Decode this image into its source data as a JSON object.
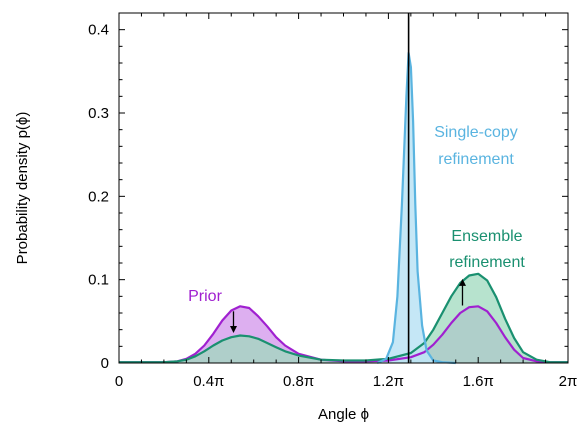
{
  "chart_data": {
    "type": "area",
    "xlabel": "Angle ϕ",
    "ylabel": "Probability density p(ϕ)",
    "xlim": [
      0,
      6.2832
    ],
    "ylim": [
      0,
      0.42
    ],
    "x_ticks": [
      {
        "value": 0,
        "label": "0"
      },
      {
        "value": 1.2566,
        "label": "0.4π"
      },
      {
        "value": 2.5133,
        "label": "0.8π"
      },
      {
        "value": 3.7699,
        "label": "1.2π"
      },
      {
        "value": 5.0265,
        "label": "1.6π"
      },
      {
        "value": 6.2832,
        "label": "2π"
      }
    ],
    "y_ticks": [
      {
        "value": 0,
        "label": "0"
      },
      {
        "value": 0.1,
        "label": "0.1"
      },
      {
        "value": 0.2,
        "label": "0.2"
      },
      {
        "value": 0.3,
        "label": "0.3"
      },
      {
        "value": 0.4,
        "label": "0.4"
      }
    ],
    "reference_line_x": 4.0527,
    "series": [
      {
        "name": "Prior",
        "color": "#a020d0",
        "fill": "#d9a6ee",
        "x": [
          0,
          0.3142,
          0.6283,
          0.8168,
          0.9425,
          1.0681,
          1.1938,
          1.3195,
          1.4451,
          1.5708,
          1.6965,
          1.8221,
          1.9478,
          2.0735,
          2.1991,
          2.3248,
          2.5133,
          2.8274,
          3.1416,
          3.4558,
          3.7699,
          4.0841,
          4.2726,
          4.3982,
          4.5239,
          4.6496,
          4.7752,
          4.9009,
          5.0265,
          5.1522,
          5.2779,
          5.4035,
          5.5292,
          5.6549,
          5.8434,
          6.0319,
          6.2832
        ],
        "y": [
          0.001,
          0.001,
          0.001,
          0.002,
          0.005,
          0.011,
          0.021,
          0.035,
          0.051,
          0.063,
          0.068,
          0.066,
          0.056,
          0.044,
          0.031,
          0.021,
          0.011,
          0.004,
          0.002,
          0.002,
          0.003,
          0.007,
          0.013,
          0.022,
          0.034,
          0.048,
          0.06,
          0.067,
          0.068,
          0.062,
          0.048,
          0.031,
          0.016,
          0.006,
          0.002,
          0.001,
          0.001
        ]
      },
      {
        "name": "Ensemble refinement",
        "color": "#1a9070",
        "fill": "#9fd9be",
        "x": [
          0,
          0.3142,
          0.6283,
          0.8168,
          0.9425,
          1.0681,
          1.1938,
          1.3195,
          1.4451,
          1.5708,
          1.6965,
          1.8221,
          1.9478,
          2.0735,
          2.1991,
          2.3248,
          2.5133,
          2.8274,
          3.1416,
          3.4558,
          3.7699,
          4.0841,
          4.2726,
          4.3982,
          4.5239,
          4.6496,
          4.7752,
          4.9009,
          5.0265,
          5.1522,
          5.2779,
          5.4035,
          5.5292,
          5.6549,
          5.8434,
          6.0319,
          6.2832
        ],
        "y": [
          0.001,
          0.001,
          0.001,
          0.002,
          0.004,
          0.008,
          0.014,
          0.021,
          0.027,
          0.031,
          0.033,
          0.032,
          0.029,
          0.024,
          0.019,
          0.014,
          0.009,
          0.004,
          0.003,
          0.003,
          0.005,
          0.012,
          0.024,
          0.04,
          0.06,
          0.08,
          0.096,
          0.105,
          0.107,
          0.099,
          0.079,
          0.053,
          0.03,
          0.013,
          0.004,
          0.001,
          0.001
        ]
      },
      {
        "name": "Single-copy refinement",
        "color": "#5ab4e0",
        "fill": "#bfe4f5",
        "x": [
          3.6128,
          3.7385,
          3.8327,
          3.8956,
          3.9584,
          4.0212,
          4.0527,
          4.0841,
          4.1155,
          4.1469,
          4.1783,
          4.2411,
          4.304,
          4.3982,
          4.5239,
          4.7124
        ],
        "y": [
          0.0,
          0.005,
          0.025,
          0.08,
          0.19,
          0.32,
          0.372,
          0.355,
          0.29,
          0.19,
          0.11,
          0.045,
          0.015,
          0.003,
          0.001,
          0.0
        ]
      }
    ],
    "annotations": [
      {
        "text": "Prior",
        "color": "#a020d0"
      },
      {
        "text": "Single-copy",
        "color": "#5ab4e0"
      },
      {
        "text": "refinement",
        "color": "#5ab4e0"
      },
      {
        "text": "Ensemble",
        "color": "#1a9070"
      },
      {
        "text": "refinement",
        "color": "#1a9070"
      }
    ],
    "arrows": [
      {
        "x": 1.6022,
        "from_y": 0.062,
        "to_y": 0.036
      },
      {
        "x": 4.8067,
        "from_y": 0.069,
        "to_y": 0.101
      }
    ]
  }
}
